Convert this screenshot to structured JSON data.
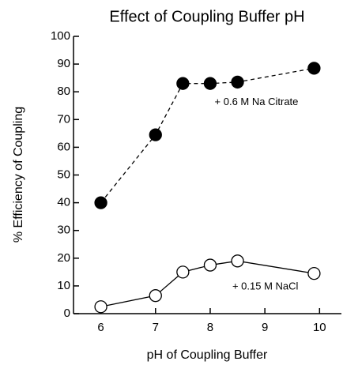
{
  "chart_data": {
    "type": "line",
    "title": "Effect of Coupling Buffer pH",
    "x_label": "pH of Coupling Buffer",
    "y_label": "% Efficiency of Coupling",
    "xlim": [
      5.5,
      10.4
    ],
    "xticks": [
      6,
      7,
      8,
      9,
      10
    ],
    "ylim": [
      0,
      100
    ],
    "yticks": [
      0,
      10,
      20,
      30,
      40,
      50,
      60,
      70,
      80,
      90,
      100
    ],
    "series": [
      {
        "name": "+ 0.6 M Na Citrate",
        "color": "#000000",
        "marker": "filled",
        "linestyle": "dashed",
        "x": [
          6,
          7,
          7.5,
          8,
          8.5,
          9.9
        ],
        "values": [
          40,
          64.5,
          83,
          83,
          83.5,
          88.5
        ]
      },
      {
        "name": "+ 0.15 M NaCl",
        "color": "#000000",
        "marker": "open",
        "linestyle": "solid",
        "x": [
          6,
          7,
          7.5,
          8,
          8.5,
          9.9
        ],
        "values": [
          2.5,
          6.5,
          15,
          17.5,
          19,
          14.5
        ]
      }
    ]
  }
}
